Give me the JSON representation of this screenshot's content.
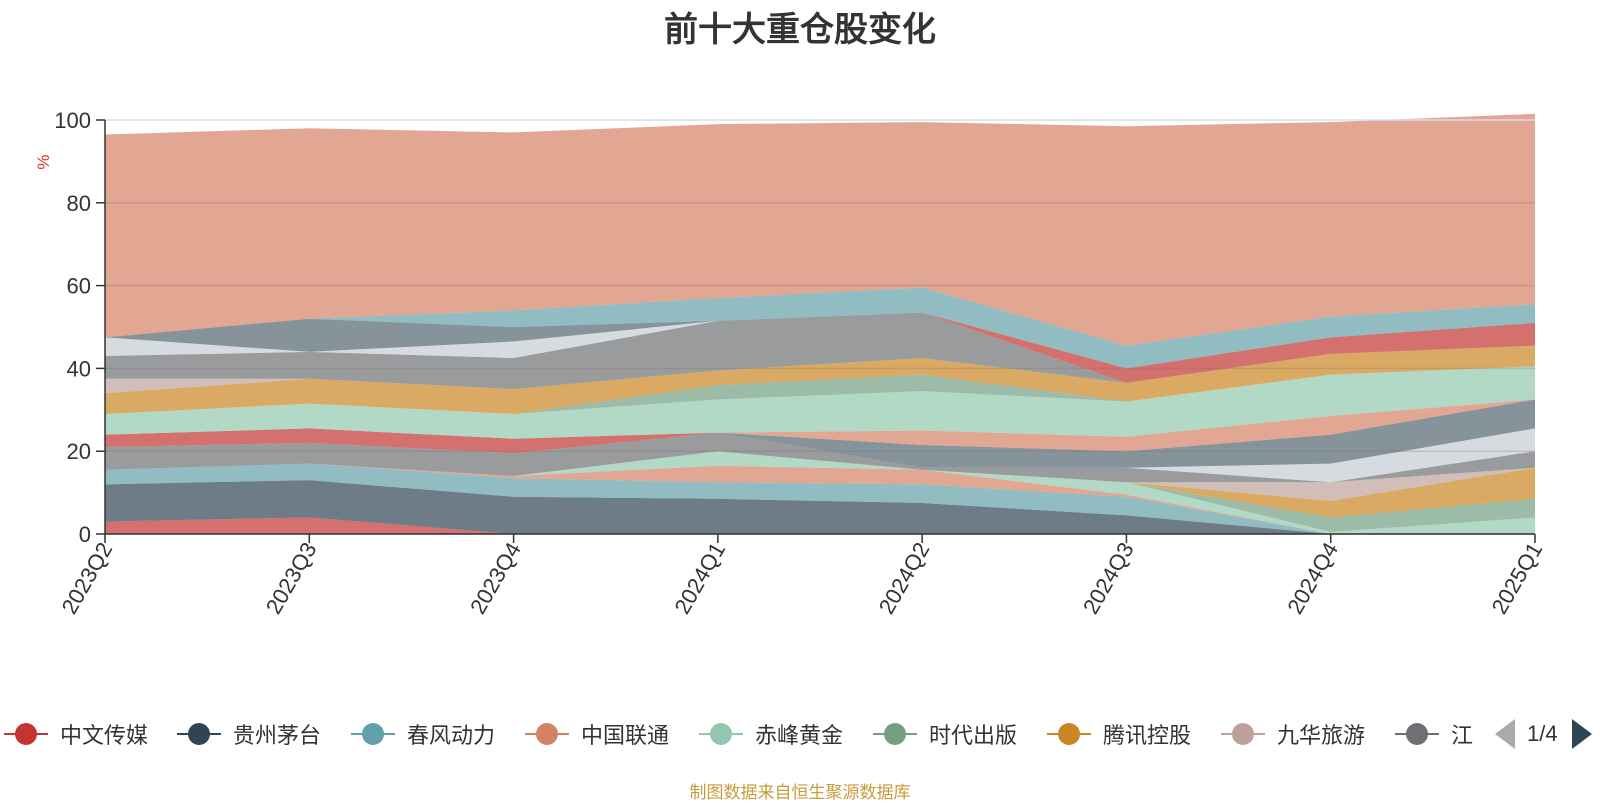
{
  "title": "前十大重仓股变化",
  "source_note": "制图数据来自恒生聚源数据库",
  "legend": {
    "page_indicator": "1/4",
    "items": [
      {
        "label": "中文传媒",
        "color": "#c23531"
      },
      {
        "label": "贵州茅台",
        "color": "#2f4554"
      },
      {
        "label": "春风动力",
        "color": "#61a0a8"
      },
      {
        "label": "中国联通",
        "color": "#d48265"
      },
      {
        "label": "赤峰黄金",
        "color": "#91c7ae"
      },
      {
        "label": "时代出版",
        "color": "#749f83"
      },
      {
        "label": "腾讯控股",
        "color": "#ca8622"
      },
      {
        "label": "九华旅游",
        "color": "#bda29a"
      },
      {
        "label": "江",
        "color": "#6e7074"
      }
    ]
  },
  "chart_data": {
    "type": "area",
    "stacked": true,
    "title": "前十大重仓股变化",
    "ylabel": "%",
    "ylim": [
      0,
      100
    ],
    "yticks": [
      0,
      20,
      40,
      60,
      80,
      100
    ],
    "categories": [
      "2023Q2",
      "2023Q3",
      "2023Q4",
      "2024Q1",
      "2024Q2",
      "2024Q3",
      "2024Q4",
      "2025Q1"
    ],
    "legend_position": "bottom",
    "grid": true,
    "series": [
      {
        "color": "#c23531",
        "values": [
          3,
          4,
          0,
          0,
          0,
          0,
          0,
          0
        ]
      },
      {
        "color": "#2f4554",
        "values": [
          9,
          9,
          9,
          8.5,
          7.5,
          4.5,
          0,
          0
        ]
      },
      {
        "color": "#61a0a8",
        "values": [
          3.5,
          4,
          4.5,
          4,
          4.5,
          4.5,
          0,
          0
        ]
      },
      {
        "color": "#d48265",
        "values": [
          0,
          0,
          0.5,
          4,
          3.5,
          0.5,
          0,
          0
        ]
      },
      {
        "color": "#91c7ae",
        "values": [
          0,
          0,
          0,
          3.5,
          0,
          3,
          0.5,
          4
        ]
      },
      {
        "color": "#749f83",
        "values": [
          0,
          0,
          0,
          0,
          0,
          0,
          3.5,
          4.5
        ]
      },
      {
        "color": "#ca8622",
        "values": [
          0,
          0,
          0,
          0,
          0,
          0,
          4,
          7.5
        ]
      },
      {
        "color": "#bda29a",
        "values": [
          0,
          0,
          0,
          0,
          0,
          0,
          4.5,
          0
        ]
      },
      {
        "color": "#6e7074",
        "values": [
          5.5,
          5,
          5.5,
          4.5,
          0.5,
          3.5,
          0,
          4
        ]
      },
      {
        "color": "#c4ccd3",
        "values": [
          0,
          0,
          0,
          0,
          0,
          0,
          4.5,
          5.5
        ]
      },
      {
        "color": "#546570",
        "values": [
          0,
          0,
          0,
          0,
          5.5,
          4,
          7,
          7
        ]
      },
      {
        "color": "#d48265",
        "values": [
          0,
          0,
          0,
          0,
          3.5,
          3.5,
          4.5,
          0
        ]
      },
      {
        "color": "#c23531",
        "values": [
          3,
          3.5,
          3.5,
          0,
          0,
          0,
          0,
          0
        ]
      },
      {
        "color": "#91c7ae",
        "values": [
          5,
          6,
          6,
          8,
          9.5,
          8.5,
          10,
          8
        ]
      },
      {
        "color": "#749f83",
        "values": [
          0,
          0,
          0,
          3.5,
          4,
          0,
          0,
          0
        ]
      },
      {
        "color": "#ca8622",
        "values": [
          5,
          6,
          6,
          3.5,
          4,
          4.5,
          5,
          5
        ]
      },
      {
        "color": "#bda29a",
        "values": [
          3.5,
          0,
          0,
          0,
          0,
          0,
          0,
          0
        ]
      },
      {
        "color": "#6e7074",
        "values": [
          5.5,
          6.5,
          7.5,
          12,
          11,
          0,
          0,
          0
        ]
      },
      {
        "color": "#c23531",
        "values": [
          0,
          0,
          0,
          0,
          0,
          3.5,
          4,
          5.5
        ]
      },
      {
        "color": "#c4ccd3",
        "values": [
          4.5,
          0,
          4,
          0,
          0,
          0,
          0,
          0
        ]
      },
      {
        "color": "#546570",
        "values": [
          0,
          8,
          3.5,
          0,
          0,
          0,
          0,
          0
        ]
      },
      {
        "color": "#61a0a8",
        "values": [
          0,
          0,
          4,
          5.5,
          6,
          5.5,
          5,
          4.5
        ]
      },
      {
        "color": "#d48265",
        "values": [
          49,
          46,
          43,
          42,
          40,
          53,
          47,
          46
        ]
      }
    ]
  }
}
